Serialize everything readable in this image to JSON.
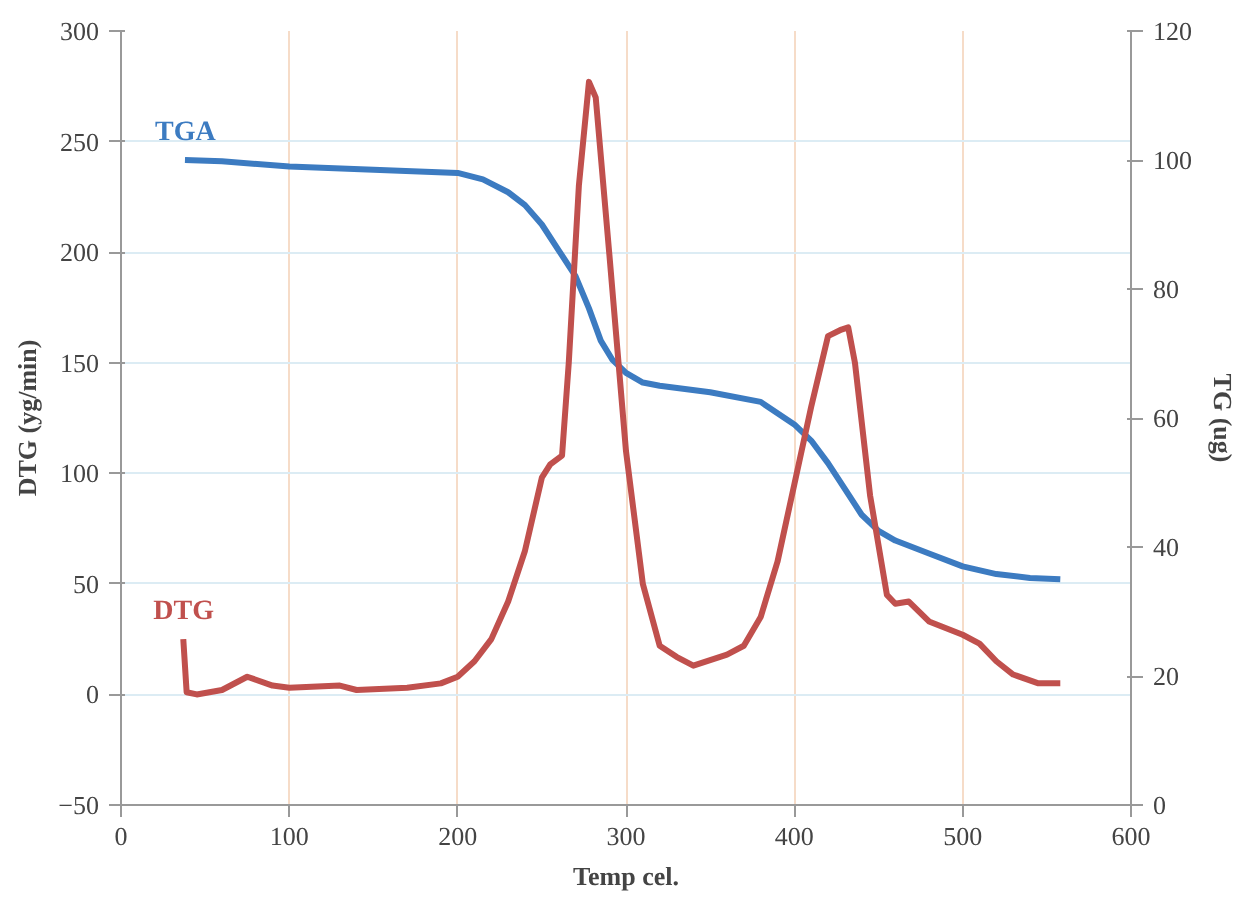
{
  "chart_data": {
    "type": "line",
    "xlabel": "Temp cel.",
    "ylabel": "DTG (yg/min)",
    "y2label": "TG (ug)",
    "xlim": [
      0,
      600
    ],
    "xticks": [
      0,
      100,
      200,
      300,
      400,
      500,
      600
    ],
    "ylim": [
      -50,
      300
    ],
    "yticks": [
      -50,
      0,
      50,
      100,
      150,
      200,
      250,
      300
    ],
    "y2lim": [
      0,
      120
    ],
    "y2ticks": [
      0,
      20,
      40,
      60,
      80,
      100,
      120
    ],
    "grid": true,
    "marker": "none",
    "line_style": "solid",
    "series": [
      {
        "name": "TGA",
        "color": "#3c7bc1",
        "axis": "y2",
        "x": [
          38,
          60,
          100,
          150,
          200,
          215,
          230,
          240,
          250,
          260,
          270,
          278,
          285,
          292,
          300,
          310,
          320,
          350,
          380,
          400,
          410,
          420,
          430,
          440,
          450,
          460,
          480,
          500,
          520,
          540,
          558
        ],
        "values": [
          100,
          99.8,
          99,
          98.5,
          98,
          97,
          95,
          93,
          90,
          86,
          82,
          77,
          72,
          69,
          67,
          65.5,
          65,
          64,
          62.5,
          59,
          56.5,
          53,
          49,
          45,
          42.5,
          41,
          39,
          37,
          35.8,
          35.2,
          35
        ]
      },
      {
        "name": "DTG",
        "color": "#c0504d",
        "x": [
          37,
          39,
          45,
          60,
          75,
          90,
          100,
          130,
          140,
          170,
          190,
          200,
          210,
          220,
          230,
          240,
          250,
          255,
          262,
          266,
          272,
          278,
          282,
          290,
          300,
          310,
          320,
          330,
          340,
          360,
          370,
          380,
          390,
          400,
          410,
          420,
          428,
          432,
          436,
          445,
          455,
          460,
          468,
          480,
          500,
          510,
          520,
          530,
          545,
          558
        ],
        "values": [
          25,
          1,
          0,
          2,
          8,
          4,
          3,
          4,
          2,
          3,
          5,
          8,
          15,
          25,
          42,
          65,
          98,
          104,
          108,
          150,
          230,
          277,
          270,
          200,
          110,
          50,
          22,
          17,
          13,
          18,
          22,
          35,
          60,
          95,
          130,
          162,
          165,
          166,
          150,
          90,
          45,
          41,
          42,
          33,
          27,
          23,
          15,
          9,
          5,
          5
        ]
      }
    ]
  }
}
